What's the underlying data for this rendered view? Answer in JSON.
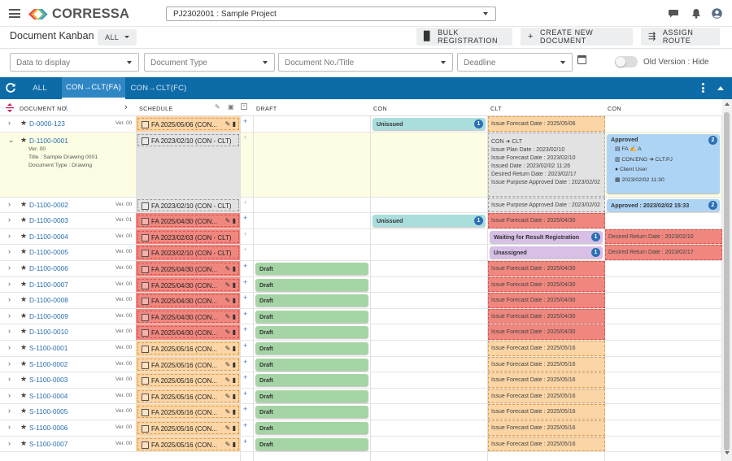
{
  "app": {
    "logo_text": "CORRESSA",
    "project": "PJ2302001 : Sample Project"
  },
  "page": {
    "title": "Document Kanban",
    "filter_all": "ALL",
    "bulk_registration": "BULK REGISTRATION",
    "create_new_document": "CREATE NEW DOCUMENT",
    "assign_route": "ASSIGN ROUTE"
  },
  "filters": {
    "data_to_display": "Data to display",
    "document_type": "Document Type",
    "document_no_title": "Document No./Title",
    "deadline": "Deadline",
    "old_version_label": "Old Version : Hide"
  },
  "tabs": [
    "ALL",
    "CON→CLT(FA)",
    "CON→CLT(FC)"
  ],
  "active_tab": 1,
  "columns": {
    "document_no": "DOCUMENT NO.",
    "schedule": "SCHEDULE",
    "draft": "DRAFT",
    "con": "CON",
    "clt": "CLT",
    "con2": "CON"
  },
  "colors": {
    "tabbar": "#0d6ba8",
    "overdue_red": "#f0877f",
    "upcoming_orange": "#fbd5a5",
    "neutral_gray": "#e2e2e2",
    "draft_green": "#a6d5a5",
    "unissued_teal": "#a9dedc",
    "waiting_purple": "#d8bfe6",
    "approved_blue": "#aed4f5",
    "expanded_row": "#fdfde3"
  },
  "rows": [
    {
      "doc": "D-0000-123",
      "ver": "Ver. 00",
      "sched": "FA 2025/05/06 (CON...",
      "sched_color": "orange",
      "sched_actions": true,
      "plus_active": true,
      "draft": "",
      "con": {
        "label": "Unissued",
        "badge": "1"
      },
      "clt": {
        "type": "text",
        "text": "Issue Forecast Date : 2025/05/06",
        "color": "orange"
      },
      "con2": null
    },
    {
      "doc": "D-1100-0001",
      "ver": "",
      "expanded": true,
      "details": [
        "Ver. 00",
        "Title : Sample Drawing 0001",
        "Document Type : Drawing"
      ],
      "sched": "FA 2023/02/10 (CON - CLT)",
      "sched_color": "gray",
      "sched_actions": false,
      "plus_active": false,
      "draft": "",
      "con": null,
      "clt": {
        "type": "detail",
        "route_from": "CON",
        "route_to": "CLT",
        "lines": [
          "Issue Plan Date : 2023/02/10",
          "Issue Forecast Date : 2023/02/10",
          "Issued Date : 2023/02/02 11:26",
          "Desired Return Date : 2023/02/17",
          "Issue Purpose Approved Date : 2023/02/02"
        ]
      },
      "con2": {
        "type": "approved",
        "label": "Approved",
        "badge": "2",
        "status": "FA",
        "route_from": "CON:ENG",
        "route_to": "CLT:PJ",
        "user": "Client User",
        "date": "2023/02/02 11:30"
      }
    },
    {
      "doc": "D-1100-0002",
      "ver": "Ver. 00",
      "sched": "FA 2023/02/10 (CON - CLT)",
      "sched_color": "gray",
      "sched_actions": false,
      "plus_active": false,
      "draft": "",
      "con": null,
      "clt": {
        "type": "text",
        "text": "Issue Purpose Approved Date : 2023/02/02",
        "color": "gray"
      },
      "con2": {
        "type": "card",
        "label": "Approved : 2023/02/02 15:33",
        "badge": "2"
      }
    },
    {
      "doc": "D-1100-0003",
      "ver": "Ver. 01",
      "sched": "FA 2025/04/30 (CON...",
      "sched_color": "red",
      "sched_actions": true,
      "plus_active": true,
      "draft": "",
      "con": {
        "label": "Unissued",
        "badge": "1"
      },
      "clt": {
        "type": "text",
        "text": "Issue Forecast Date : 2025/04/30",
        "color": "red"
      },
      "con2": null
    },
    {
      "doc": "D-1100-0004",
      "ver": "Ver. 00",
      "sched": "FA 2023/02/03 (CON - CLT)",
      "sched_color": "red",
      "sched_actions": false,
      "plus_active": false,
      "draft": "",
      "con": null,
      "clt": {
        "type": "card",
        "label": "Waiting for Result Registration",
        "badge": "1"
      },
      "con2": {
        "type": "text",
        "text": "Desired Return Date : 2023/02/10",
        "color": "red"
      }
    },
    {
      "doc": "D-1100-0005",
      "ver": "Ver. 00",
      "sched": "FA 2023/02/10 (CON - CLT)",
      "sched_color": "red",
      "sched_actions": false,
      "plus_active": false,
      "draft": "",
      "con": null,
      "clt": {
        "type": "card",
        "label": "Unassigned",
        "badge": "1"
      },
      "con2": {
        "type": "text",
        "text": "Desired Return Date : 2023/02/17",
        "color": "red"
      }
    },
    {
      "doc": "D-1100-0006",
      "ver": "Ver. 00",
      "sched": "FA 2025/04/30 (CON...",
      "sched_color": "red",
      "sched_actions": true,
      "plus_active": true,
      "draft": "Draft",
      "con": null,
      "clt": {
        "type": "text",
        "text": "Issue Forecast Date : 2025/04/30",
        "color": "red"
      },
      "con2": null
    },
    {
      "doc": "D-1100-0007",
      "ver": "Ver. 00",
      "sched": "FA 2025/04/30 (CON...",
      "sched_color": "red",
      "sched_actions": true,
      "plus_active": true,
      "draft": "Draft",
      "con": null,
      "clt": {
        "type": "text",
        "text": "Issue Forecast Date : 2025/04/30",
        "color": "red"
      },
      "con2": null
    },
    {
      "doc": "D-1100-0008",
      "ver": "Ver. 00",
      "sched": "FA 2025/04/30 (CON...",
      "sched_color": "red",
      "sched_actions": true,
      "plus_active": true,
      "draft": "Draft",
      "con": null,
      "clt": {
        "type": "text",
        "text": "Issue Forecast Date : 2025/04/30",
        "color": "red"
      },
      "con2": null
    },
    {
      "doc": "D-1100-0009",
      "ver": "Ver. 00",
      "sched": "FA 2025/04/30 (CON...",
      "sched_color": "red",
      "sched_actions": true,
      "plus_active": true,
      "draft": "Draft",
      "con": null,
      "clt": {
        "type": "text",
        "text": "Issue Forecast Date : 2025/04/30",
        "color": "red"
      },
      "con2": null
    },
    {
      "doc": "D-1100-0010",
      "ver": "Ver. 00",
      "sched": "FA 2025/04/30 (CON...",
      "sched_color": "red",
      "sched_actions": true,
      "plus_active": true,
      "draft": "Draft",
      "con": null,
      "clt": {
        "type": "text",
        "text": "Issue Forecast Date : 2025/04/30",
        "color": "red"
      },
      "con2": null
    },
    {
      "doc": "S-1100-0001",
      "ver": "Ver. 00",
      "sched": "FA 2025/05/16 (CON...",
      "sched_color": "orange",
      "sched_actions": true,
      "plus_active": true,
      "draft": "Draft",
      "con": null,
      "clt": {
        "type": "text",
        "text": "Issue Forecast Date : 2025/05/16",
        "color": "orange"
      },
      "con2": null
    },
    {
      "doc": "S-1100-0002",
      "ver": "Ver. 00",
      "sched": "FA 2025/05/16 (CON...",
      "sched_color": "orange",
      "sched_actions": true,
      "plus_active": true,
      "draft": "Draft",
      "con": null,
      "clt": {
        "type": "text",
        "text": "Issue Forecast Date : 2025/05/16",
        "color": "orange"
      },
      "con2": null
    },
    {
      "doc": "S-1100-0003",
      "ver": "Ver. 00",
      "sched": "FA 2025/05/16 (CON...",
      "sched_color": "orange",
      "sched_actions": true,
      "plus_active": true,
      "draft": "Draft",
      "con": null,
      "clt": {
        "type": "text",
        "text": "Issue Forecast Date : 2025/05/16",
        "color": "orange"
      },
      "con2": null
    },
    {
      "doc": "S-1100-0004",
      "ver": "Ver. 00",
      "sched": "FA 2025/05/16 (CON...",
      "sched_color": "orange",
      "sched_actions": true,
      "plus_active": true,
      "draft": "Draft",
      "con": null,
      "clt": {
        "type": "text",
        "text": "Issue Forecast Date : 2025/05/16",
        "color": "orange"
      },
      "con2": null
    },
    {
      "doc": "S-1100-0005",
      "ver": "Ver. 00",
      "sched": "FA 2025/05/16 (CON...",
      "sched_color": "orange",
      "sched_actions": true,
      "plus_active": true,
      "draft": "Draft",
      "con": null,
      "clt": {
        "type": "text",
        "text": "Issue Forecast Date : 2025/05/16",
        "color": "orange"
      },
      "con2": null
    },
    {
      "doc": "S-1100-0006",
      "ver": "Ver. 00",
      "sched": "FA 2025/05/16 (CON...",
      "sched_color": "orange",
      "sched_actions": true,
      "plus_active": true,
      "draft": "Draft",
      "con": null,
      "clt": {
        "type": "text",
        "text": "Issue Forecast Date : 2025/05/16",
        "color": "orange"
      },
      "con2": null
    },
    {
      "doc": "S-1100-0007",
      "ver": "Ver. 00",
      "sched": "FA 2025/05/16 (CON...",
      "sched_color": "orange",
      "sched_actions": true,
      "plus_active": true,
      "draft": "Draft",
      "con": null,
      "clt": {
        "type": "text",
        "text": "Issue Forecast Date : 2025/05/16",
        "color": "orange"
      },
      "con2": null
    },
    {
      "doc": "",
      "ver": "",
      "sched": "",
      "sched_color": "orange",
      "sched_actions": false,
      "plus_active": false,
      "draft": "",
      "con": null,
      "clt": {
        "type": "text",
        "text": "",
        "color": "orange"
      },
      "con2": null
    }
  ]
}
